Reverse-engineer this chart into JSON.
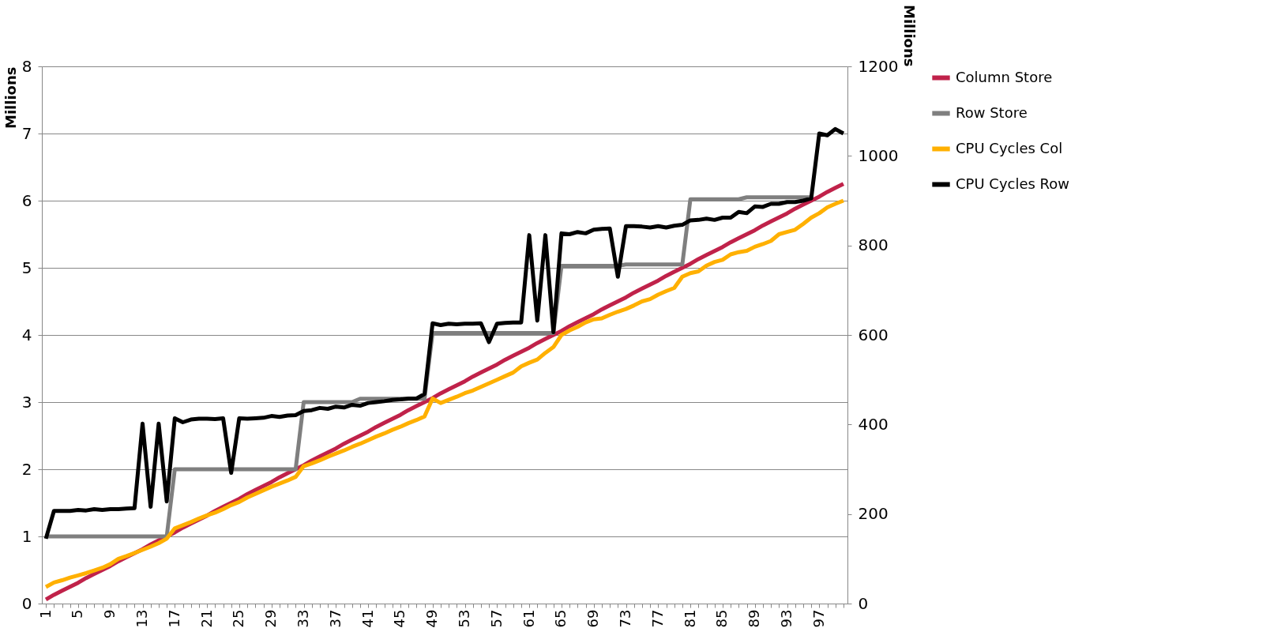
{
  "chart_data": {
    "type": "line",
    "ylabel": "Millions",
    "y2label": "Millions",
    "categories": [
      "1",
      null,
      null,
      null,
      "5",
      null,
      null,
      null,
      "9",
      null,
      null,
      null,
      "13",
      null,
      null,
      null,
      "17",
      null,
      null,
      null,
      "21",
      null,
      null,
      null,
      "25",
      null,
      null,
      null,
      "29",
      null,
      null,
      null,
      "33",
      null,
      null,
      null,
      "37",
      null,
      null,
      null,
      "41",
      null,
      null,
      null,
      "45",
      null,
      null,
      null,
      "49",
      null,
      null,
      null,
      "53",
      null,
      null,
      null,
      "57",
      null,
      null,
      null,
      "61",
      null,
      null,
      null,
      "65",
      null,
      null,
      null,
      "69",
      null,
      null,
      null,
      "73",
      null,
      null,
      null,
      "77",
      null,
      null,
      null,
      "81",
      null,
      null,
      null,
      "85",
      null,
      null,
      null,
      "89",
      null,
      null,
      null,
      "93",
      null,
      null,
      null,
      "97",
      null,
      null,
      null
    ],
    "ylim": [
      0,
      8
    ],
    "yticks": [
      0,
      1,
      2,
      3,
      4,
      5,
      6,
      7,
      8
    ],
    "y2lim": [
      0,
      1200
    ],
    "y2ticks": [
      0,
      200,
      400,
      600,
      800,
      1000,
      1200
    ],
    "grid": "y",
    "legend": "right",
    "marker": "none",
    "line_style": "solid",
    "series": [
      {
        "name": "Column Store",
        "color": "#c0224a",
        "values": [
          0.06,
          0.13,
          0.19,
          0.25,
          0.31,
          0.38,
          0.44,
          0.5,
          0.56,
          0.63,
          0.69,
          0.75,
          0.81,
          0.88,
          0.94,
          1.0,
          1.06,
          1.13,
          1.19,
          1.25,
          1.31,
          1.38,
          1.44,
          1.5,
          1.56,
          1.63,
          1.69,
          1.75,
          1.81,
          1.88,
          1.94,
          2.0,
          2.06,
          2.13,
          2.19,
          2.25,
          2.31,
          2.38,
          2.44,
          2.5,
          2.56,
          2.63,
          2.69,
          2.75,
          2.81,
          2.88,
          2.94,
          3.0,
          3.06,
          3.13,
          3.19,
          3.25,
          3.31,
          3.38,
          3.44,
          3.5,
          3.56,
          3.63,
          3.69,
          3.75,
          3.81,
          3.88,
          3.94,
          4.0,
          4.06,
          4.13,
          4.19,
          4.25,
          4.31,
          4.38,
          4.44,
          4.5,
          4.56,
          4.63,
          4.69,
          4.75,
          4.81,
          4.88,
          4.94,
          5.0,
          5.06,
          5.13,
          5.19,
          5.25,
          5.31,
          5.38,
          5.44,
          5.5,
          5.56,
          5.63,
          5.69,
          5.75,
          5.81,
          5.88,
          5.94,
          6.0,
          6.06,
          6.13,
          6.19,
          6.25
        ]
      },
      {
        "name": "Row Store",
        "color": "#7f7f7f",
        "values": [
          1.0,
          1.0,
          1.0,
          1.0,
          1.0,
          1.0,
          1.0,
          1.0,
          1.0,
          1.0,
          1.0,
          1.0,
          1.0,
          1.0,
          1.0,
          1.0,
          2.0,
          2.0,
          2.0,
          2.0,
          2.0,
          2.0,
          2.0,
          2.0,
          2.0,
          2.0,
          2.0,
          2.0,
          2.0,
          2.0,
          2.0,
          2.0,
          3.0,
          3.0,
          3.0,
          3.0,
          3.0,
          3.0,
          3.0,
          3.05,
          3.05,
          3.05,
          3.05,
          3.05,
          3.05,
          3.05,
          3.05,
          3.05,
          4.03,
          4.03,
          4.03,
          4.03,
          4.03,
          4.03,
          4.03,
          4.03,
          4.03,
          4.03,
          4.03,
          4.03,
          4.03,
          4.03,
          4.03,
          4.03,
          5.03,
          5.03,
          5.03,
          5.03,
          5.03,
          5.03,
          5.03,
          5.03,
          5.05,
          5.05,
          5.05,
          5.05,
          5.05,
          5.05,
          5.05,
          5.05,
          6.02,
          6.02,
          6.02,
          6.02,
          6.02,
          6.02,
          6.02,
          6.05,
          6.05,
          6.05,
          6.05,
          6.05,
          6.05,
          6.05,
          6.05,
          6.05,
          null,
          null,
          null,
          null
        ]
      },
      {
        "name": "CPU Cycles Col",
        "color": "#ffb000",
        "axis": "y2",
        "values": [
          37,
          47,
          52,
          58,
          63,
          68,
          74,
          80,
          88,
          100,
          106,
          113,
          120,
          127,
          135,
          145,
          168,
          175,
          182,
          190,
          197,
          203,
          211,
          220,
          227,
          237,
          245,
          253,
          261,
          268,
          275,
          283,
          307,
          313,
          320,
          328,
          335,
          342,
          350,
          357,
          365,
          373,
          380,
          388,
          395,
          403,
          410,
          418,
          458,
          448,
          455,
          462,
          470,
          476,
          484,
          492,
          500,
          508,
          516,
          530,
          538,
          545,
          560,
          573,
          600,
          610,
          618,
          628,
          635,
          637,
          645,
          652,
          658,
          666,
          675,
          680,
          690,
          698,
          705,
          730,
          738,
          742,
          755,
          763,
          768,
          780,
          785,
          788,
          797,
          803,
          810,
          825,
          830,
          835,
          848,
          862,
          872,
          885,
          893,
          900
        ]
      },
      {
        "name": "CPU Cycles Row",
        "color": "#000000",
        "axis": "y2",
        "values": [
          145,
          207,
          207,
          207,
          209,
          208,
          211,
          209,
          211,
          211,
          212,
          213,
          402,
          216,
          402,
          228,
          414,
          405,
          411,
          413,
          413,
          412,
          414,
          292,
          414,
          413,
          414,
          415,
          419,
          417,
          420,
          421,
          430,
          432,
          437,
          435,
          440,
          438,
          444,
          442,
          448,
          450,
          452,
          455,
          456,
          458,
          458,
          468,
          626,
          622,
          625,
          624,
          625,
          625,
          626,
          584,
          625,
          627,
          628,
          628,
          823,
          632,
          823,
          606,
          827,
          825,
          830,
          827,
          835,
          837,
          838,
          730,
          843,
          843,
          842,
          840,
          843,
          840,
          844,
          846,
          856,
          857,
          860,
          857,
          862,
          862,
          875,
          872,
          887,
          886,
          893,
          893,
          897,
          897,
          900,
          905,
          1050,
          1046,
          1060,
          1050
        ]
      }
    ]
  }
}
